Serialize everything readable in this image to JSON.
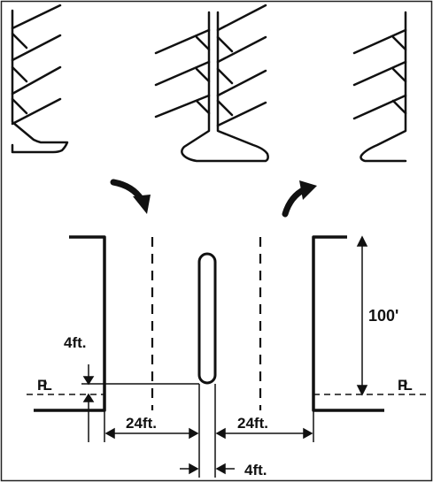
{
  "diagram": {
    "labels": {
      "left_offset": "4ft.",
      "left_lane_width": "24ft.",
      "right_lane_width": "24ft.",
      "median_width": "4ft.",
      "taper_length": "100'",
      "property_line_left": "PL",
      "property_line_right": "PL"
    },
    "colors": {
      "stroke": "#111111",
      "background": "#ffffff"
    },
    "icons": {
      "entry_arrow": "curved-arrow-down-right-icon",
      "exit_arrow": "curved-arrow-up-right-icon"
    }
  }
}
